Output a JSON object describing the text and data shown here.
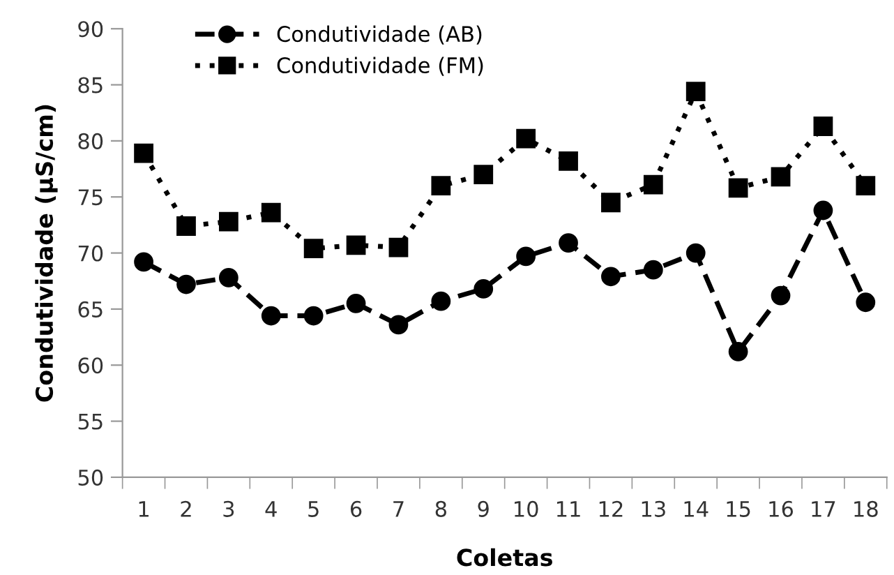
{
  "chart_data": {
    "type": "line",
    "xlabel": "Coletas",
    "ylabel": "Condutividade (µS/cm)",
    "categories": [
      "1",
      "2",
      "3",
      "4",
      "5",
      "6",
      "7",
      "8",
      "9",
      "10",
      "11",
      "12",
      "13",
      "14",
      "15",
      "16",
      "17",
      "18"
    ],
    "series": [
      {
        "name": "Condutividade (AB)",
        "color": "#000000",
        "marker": "circle",
        "line_style": "dashed",
        "values": [
          69.2,
          67.2,
          67.8,
          64.4,
          64.4,
          65.5,
          63.6,
          65.7,
          66.8,
          69.7,
          70.9,
          67.9,
          68.5,
          70.0,
          61.2,
          66.2,
          73.8,
          65.6
        ]
      },
      {
        "name": "Condutividade (FM)",
        "color": "#000000",
        "marker": "square",
        "line_style": "dotted",
        "values": [
          78.9,
          72.4,
          72.8,
          73.6,
          70.4,
          70.7,
          70.5,
          76.0,
          77.0,
          80.2,
          78.2,
          74.5,
          76.1,
          84.4,
          75.8,
          76.8,
          81.3,
          76.0
        ]
      }
    ],
    "ylim": [
      50,
      90
    ],
    "yticks": [
      50,
      55,
      60,
      65,
      70,
      75,
      80,
      85,
      90
    ],
    "grid": false,
    "legend": "top left"
  }
}
